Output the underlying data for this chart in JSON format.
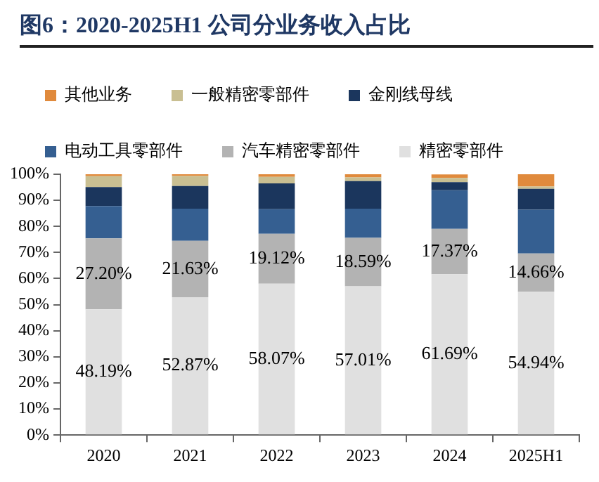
{
  "chart_data": {
    "type": "bar",
    "title": "图6：2020-2025H1 公司分业务收入占比",
    "stacked": true,
    "legend": "top",
    "grid": false,
    "categories": [
      "2020",
      "2021",
      "2022",
      "2023",
      "2024",
      "2025H1"
    ],
    "ylim": [
      0,
      100
    ],
    "yticks": [
      {
        "value": 0,
        "label": "0%"
      },
      {
        "value": 10,
        "label": "10%"
      },
      {
        "value": 20,
        "label": "20%"
      },
      {
        "value": 30,
        "label": "30%"
      },
      {
        "value": 40,
        "label": "40%"
      },
      {
        "value": 50,
        "label": "50%"
      },
      {
        "value": 60,
        "label": "60%"
      },
      {
        "value": 70,
        "label": "70%"
      },
      {
        "value": 80,
        "label": "80%"
      },
      {
        "value": 90,
        "label": "90%"
      },
      {
        "value": 100,
        "label": "100%"
      }
    ],
    "series": [
      {
        "name": "精密零部件",
        "color": "#e0e0e0",
        "values": [
          48.19,
          52.87,
          58.07,
          57.01,
          61.69,
          54.94
        ],
        "value_labels": [
          "48.19%",
          "52.87%",
          "58.07%",
          "57.01%",
          "61.69%",
          "54.94%"
        ]
      },
      {
        "name": "汽车精密零部件",
        "color": "#b3b3b3",
        "values": [
          27.2,
          21.63,
          19.12,
          18.59,
          17.37,
          14.66
        ],
        "value_labels": [
          "27.20%",
          "21.63%",
          "19.12%",
          "18.59%",
          "17.37%",
          "14.66%"
        ]
      },
      {
        "name": "电动工具零部件",
        "color": "#355f91",
        "values": [
          12.4,
          12.3,
          9.4,
          11.2,
          14.8,
          16.8
        ]
      },
      {
        "name": "金刚线母线",
        "color": "#1b365d",
        "values": [
          7.3,
          8.7,
          9.9,
          10.6,
          3.1,
          8.0
        ]
      },
      {
        "name": "一般精密零部件",
        "color": "#c9bf92",
        "values": [
          4.2,
          3.8,
          2.5,
          1.4,
          1.6,
          0.9
        ]
      },
      {
        "name": "其他业务",
        "color": "#e08a3c",
        "values": [
          0.7,
          0.7,
          1.0,
          1.2,
          1.4,
          4.7
        ]
      }
    ]
  }
}
